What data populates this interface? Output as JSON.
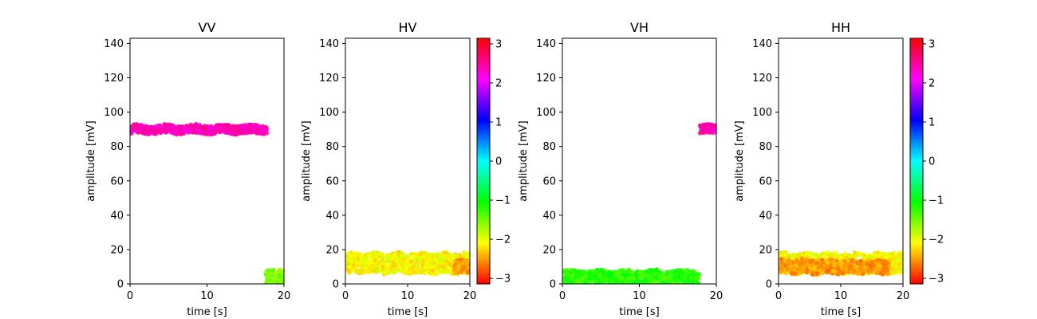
{
  "chart_data": [
    {
      "type": "scatter",
      "title": "VV",
      "xlabel": "time [s]",
      "ylabel": "amplitude [mV]",
      "xlim": [
        0,
        20
      ],
      "ylim": [
        0,
        143
      ],
      "xticks": [
        0,
        10,
        20
      ],
      "yticks": [
        0,
        20,
        40,
        60,
        80,
        100,
        120,
        140
      ],
      "colorbar": false,
      "bands": [
        {
          "x_start": 0,
          "x_end": 17.8,
          "y_center": 90,
          "y_width": 5,
          "phase": 2.4
        },
        {
          "x_start": 17.6,
          "x_end": 20,
          "y_center": 4,
          "y_width": 8,
          "phase": -1.6
        }
      ]
    },
    {
      "type": "scatter",
      "title": "HV",
      "xlabel": "time [s]",
      "ylabel": "amplitude [mV]",
      "xlim": [
        0,
        20
      ],
      "ylim": [
        0,
        143
      ],
      "xticks": [
        0,
        10,
        20
      ],
      "yticks": [
        0,
        20,
        40,
        60,
        80,
        100,
        120,
        140
      ],
      "colorbar": true,
      "bands": [
        {
          "x_start": 0,
          "x_end": 20,
          "y_center": 12,
          "y_width": 12,
          "phase": -2.1
        },
        {
          "x_start": 17.5,
          "x_end": 20,
          "y_center": 10,
          "y_width": 8,
          "phase": -2.5
        }
      ]
    },
    {
      "type": "scatter",
      "title": "VH",
      "xlabel": "time [s]",
      "ylabel": "amplitude [mV]",
      "xlim": [
        0,
        20
      ],
      "ylim": [
        0,
        143
      ],
      "xticks": [
        0,
        10,
        20
      ],
      "yticks": [
        0,
        20,
        40,
        60,
        80,
        100,
        120,
        140
      ],
      "colorbar": false,
      "bands": [
        {
          "x_start": 0,
          "x_end": 17.8,
          "y_center": 4,
          "y_width": 8,
          "phase": -1.2
        },
        {
          "x_start": 17.8,
          "x_end": 20,
          "y_center": 90,
          "y_width": 5,
          "phase": 2.4
        }
      ]
    },
    {
      "type": "scatter",
      "title": "HH",
      "xlabel": "time [s]",
      "ylabel": "amplitude [mV]",
      "xlim": [
        0,
        20
      ],
      "ylim": [
        0,
        143
      ],
      "xticks": [
        0,
        10,
        20
      ],
      "yticks": [
        0,
        20,
        40,
        60,
        80,
        100,
        120,
        140
      ],
      "colorbar": true,
      "bands": [
        {
          "x_start": 0,
          "x_end": 20,
          "y_center": 12,
          "y_width": 12,
          "phase": -2.1
        },
        {
          "x_start": 0,
          "x_end": 17.8,
          "y_center": 10,
          "y_width": 8,
          "phase": -2.5
        }
      ]
    }
  ],
  "colorbar": {
    "range": [
      -3.14159,
      3.14159
    ],
    "ticks": [
      -3,
      -2,
      -1,
      0,
      1,
      2,
      3
    ],
    "tick_labels": [
      "−3",
      "−2",
      "−1",
      "0",
      "1",
      "2",
      "3"
    ],
    "colormap": "hsv"
  }
}
